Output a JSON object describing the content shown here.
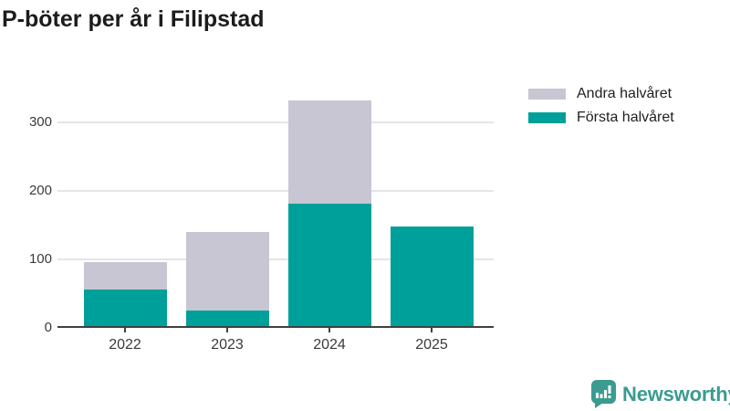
{
  "title": "P-böter per år i Filipstad",
  "legend": {
    "items": [
      {
        "label": "Andra halvåret",
        "color": "#c8c6d2"
      },
      {
        "label": "Första halvåret",
        "color": "#00a09a"
      }
    ]
  },
  "chart_data": {
    "type": "bar",
    "stacked": true,
    "title": "P-böter per år i Filipstad",
    "categories": [
      "2022",
      "2023",
      "2024",
      "2025"
    ],
    "series": [
      {
        "name": "Första halvåret",
        "color": "#00a09a",
        "values": [
          55,
          25,
          181,
          148
        ]
      },
      {
        "name": "Andra halvåret",
        "color": "#c8c6d2",
        "values": [
          40,
          114,
          150,
          0
        ]
      }
    ],
    "totals": [
      95,
      139,
      331,
      148
    ],
    "xlabel": "",
    "ylabel": "",
    "yticks": [
      0,
      100,
      200,
      300
    ],
    "gridline_values": [
      100,
      200,
      300
    ],
    "ylim": [
      0,
      350
    ],
    "grid": true,
    "legend_position": "top-right",
    "legend_order": [
      "Andra halvåret",
      "Första halvåret"
    ]
  },
  "axis_colors": {
    "grid": "#e5e5e8",
    "axis": "#404040",
    "tick_label": "#3a3a3a"
  },
  "branding": {
    "logo_text": "Newsworthy",
    "logo_color": "#3b9b91"
  }
}
